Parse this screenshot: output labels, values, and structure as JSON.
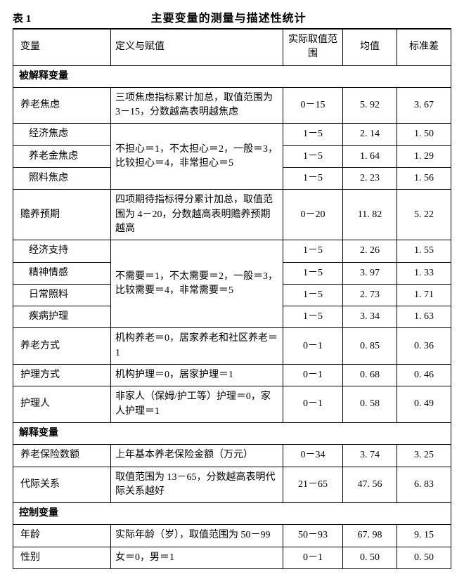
{
  "title": {
    "label": "表 1",
    "main": "主要变量的测量与描述性统计"
  },
  "columns": {
    "var": "变量",
    "def": "定义与赋值",
    "range": "实际取值范围",
    "mean": "均值",
    "sd": "标准差"
  },
  "sections": {
    "dependent": "被解释变量",
    "explanatory": "解释变量",
    "control": "控制变量"
  },
  "vars": {
    "anx_total": {
      "name": "养老焦虑",
      "def": "三项焦虑指标累计加总，取值范围为 3－15，分数越高表明越焦虑",
      "range": "0－15",
      "mean": "5. 92",
      "sd": "3. 67"
    },
    "anx_econ": {
      "name": "经济焦虑",
      "range": "1－5",
      "mean": "2. 14",
      "sd": "1. 50"
    },
    "anx_pension": {
      "name": "养老金焦虑",
      "range": "1－5",
      "mean": "1. 64",
      "sd": "1. 29"
    },
    "anx_care": {
      "name": "照料焦虑",
      "range": "1－5",
      "mean": "2. 23",
      "sd": "1. 56"
    },
    "anx_scale": {
      "def": "不担心＝1，不太担心＝2，一般＝3，比较担心＝4，非常担心＝5"
    },
    "sup_total": {
      "name": "赡养预期",
      "def": "四项期待指标得分累计加总，取值范围为 4－20，分数越高表明赡养预期越高",
      "range": "0－20",
      "mean": "11. 82",
      "sd": "5. 22"
    },
    "sup_econ": {
      "name": "经济支持",
      "range": "1－5",
      "mean": "2. 26",
      "sd": "1. 55"
    },
    "sup_emo": {
      "name": "精神情感",
      "range": "1－5",
      "mean": "3. 97",
      "sd": "1. 33"
    },
    "sup_daily": {
      "name": "日常照料",
      "range": "1－5",
      "mean": "2. 73",
      "sd": "1. 71"
    },
    "sup_ill": {
      "name": "疾病护理",
      "range": "1－5",
      "mean": "3. 34",
      "sd": "1. 63"
    },
    "sup_scale": {
      "def": "不需要＝1，不太需要＝2，一般＝3，比较需要＝4，非常需要＝5"
    },
    "mode_live": {
      "name": "养老方式",
      "def": "机构养老＝0，居家养老和社区养老＝1",
      "range": "0－1",
      "mean": "0. 85",
      "sd": "0. 36"
    },
    "mode_care": {
      "name": "护理方式",
      "def": "机构护理＝0，居家护理＝1",
      "range": "0－1",
      "mean": "0. 68",
      "sd": "0. 46"
    },
    "caregiver": {
      "name": "护理人",
      "def": "非家人（保姆/护工等）护理＝0，家人护理＝1",
      "range": "0－1",
      "mean": "0. 58",
      "sd": "0. 49"
    },
    "ins_amount": {
      "name": "养老保险数额",
      "def": "上年基本养老保险金额（万元）",
      "range": "0－34",
      "mean": "3. 74",
      "sd": "3. 25"
    },
    "intergen": {
      "name": "代际关系",
      "def": "取值范围为 13－65，分数越高表明代际关系越好",
      "range": "21－65",
      "mean": "47. 56",
      "sd": "6. 83"
    },
    "age": {
      "name": "年龄",
      "def": "实际年龄（岁），取值范围为 50－99",
      "range": "50－93",
      "mean": "67. 98",
      "sd": "9. 15"
    },
    "sex": {
      "name": "性别",
      "def": "女＝0，男＝1",
      "range": "0－1",
      "mean": "0. 50",
      "sd": "0. 50"
    }
  }
}
